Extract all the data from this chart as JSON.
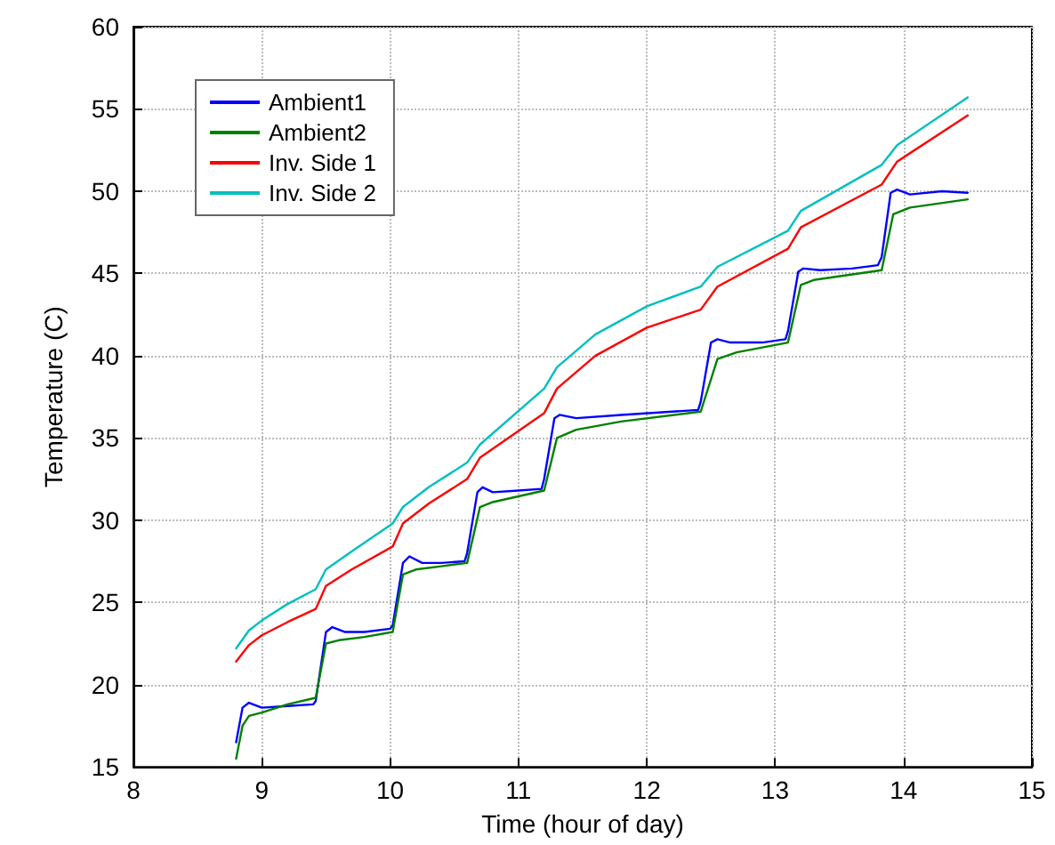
{
  "chart_data": {
    "type": "line",
    "xlabel": "Time (hour of day)",
    "ylabel": "Temperature (C)",
    "xlim": [
      8,
      15
    ],
    "xticks": [
      8,
      9,
      10,
      11,
      12,
      13,
      14,
      15
    ],
    "ylim": [
      15,
      60
    ],
    "yticks": [
      15,
      20,
      25,
      30,
      35,
      40,
      45,
      50,
      55,
      60
    ],
    "grid": true,
    "legend": "top left",
    "marker": "none",
    "line_style": "solid",
    "series": [
      {
        "name": "Ambient1",
        "color": "#0000ff",
        "x": [
          8.8,
          8.85,
          8.9,
          9.0,
          9.2,
          9.4,
          9.42,
          9.5,
          9.55,
          9.65,
          9.8,
          10.0,
          10.02,
          10.1,
          10.15,
          10.25,
          10.4,
          10.58,
          10.6,
          10.68,
          10.72,
          10.8,
          11.0,
          11.18,
          11.2,
          11.28,
          11.32,
          11.45,
          11.8,
          12.2,
          12.4,
          12.42,
          12.5,
          12.55,
          12.65,
          12.9,
          13.08,
          13.1,
          13.18,
          13.22,
          13.35,
          13.6,
          13.8,
          13.83,
          13.9,
          13.95,
          14.05,
          14.3,
          14.5
        ],
        "values": [
          16.5,
          18.6,
          18.9,
          18.6,
          18.7,
          18.8,
          19.0,
          23.2,
          23.5,
          23.2,
          23.2,
          23.4,
          23.6,
          27.4,
          27.8,
          27.4,
          27.4,
          27.5,
          28,
          31.7,
          32.0,
          31.7,
          31.8,
          31.9,
          32.5,
          36.2,
          36.4,
          36.2,
          36.4,
          36.6,
          36.7,
          37.2,
          40.8,
          41.0,
          40.8,
          40.8,
          41.0,
          41.5,
          45.1,
          45.3,
          45.2,
          45.3,
          45.5,
          46,
          49.9,
          50.1,
          49.8,
          50.0,
          49.9
        ]
      },
      {
        "name": "Ambient2",
        "color": "#008000",
        "x": [
          8.8,
          8.85,
          8.9,
          9.0,
          9.2,
          9.42,
          9.5,
          9.6,
          9.8,
          10.02,
          10.1,
          10.2,
          10.4,
          10.6,
          10.7,
          10.8,
          11.2,
          11.3,
          11.45,
          11.8,
          12.42,
          12.55,
          12.7,
          13.1,
          13.2,
          13.3,
          13.83,
          13.92,
          14.05,
          14.5
        ],
        "values": [
          15.5,
          17.5,
          18.1,
          18.3,
          18.8,
          19.2,
          22.5,
          22.7,
          22.9,
          23.2,
          26.7,
          27.0,
          27.2,
          27.4,
          30.8,
          31.1,
          31.8,
          35.0,
          35.5,
          36.0,
          36.6,
          39.8,
          40.2,
          40.8,
          44.3,
          44.6,
          45.2,
          48.6,
          49.0,
          49.5
        ]
      },
      {
        "name": "Inv. Side 1",
        "color": "#ff0000",
        "x": [
          8.8,
          8.9,
          9.0,
          9.2,
          9.42,
          9.5,
          9.7,
          10.02,
          10.1,
          10.3,
          10.6,
          10.7,
          11.2,
          11.3,
          11.6,
          12.0,
          12.42,
          12.55,
          13.1,
          13.2,
          13.83,
          13.95,
          14.5
        ],
        "values": [
          21.4,
          22.4,
          23.0,
          23.8,
          24.6,
          26.0,
          27.0,
          28.4,
          29.8,
          31,
          32.5,
          33.8,
          36.5,
          38,
          40,
          41.7,
          42.8,
          44.2,
          46.5,
          47.8,
          50.4,
          51.8,
          54.6
        ]
      },
      {
        "name": "Inv. Side 2",
        "color": "#00bfbf",
        "x": [
          8.8,
          8.9,
          9.0,
          9.2,
          9.42,
          9.5,
          9.7,
          10.02,
          10.1,
          10.3,
          10.6,
          10.7,
          11.2,
          11.3,
          11.6,
          12.0,
          12.42,
          12.55,
          13.1,
          13.2,
          13.83,
          13.95,
          14.5
        ],
        "values": [
          22.2,
          23.3,
          23.9,
          24.9,
          25.8,
          27,
          28.1,
          29.8,
          30.8,
          32.0,
          33.5,
          34.6,
          38,
          39.3,
          41.3,
          43.0,
          44.2,
          45.4,
          47.6,
          48.8,
          51.6,
          52.8,
          55.7
        ]
      }
    ]
  }
}
